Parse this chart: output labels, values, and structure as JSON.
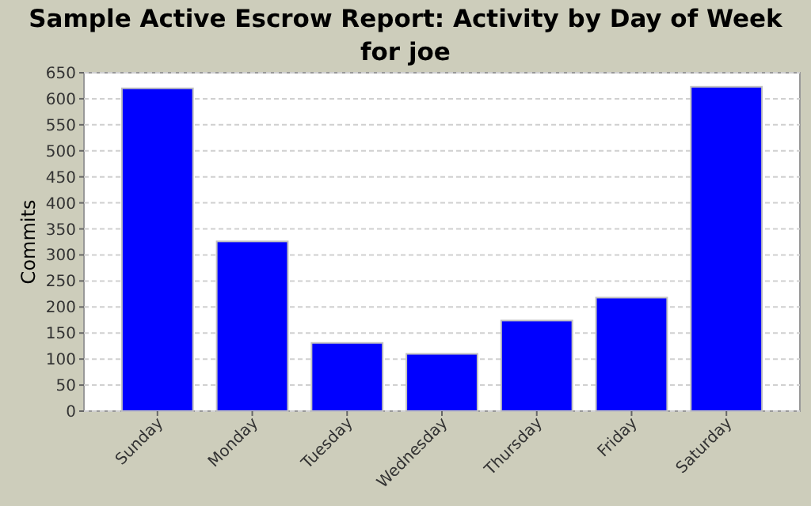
{
  "chart_data": {
    "type": "bar",
    "title": "Sample Active Escrow Report: Activity by Day of Week for joe",
    "ylabel": "Commits",
    "categories": [
      "Sunday",
      "Monday",
      "Tuesday",
      "Wednesday",
      "Thursday",
      "Friday",
      "Saturday"
    ],
    "values": [
      620,
      326,
      131,
      110,
      174,
      218,
      623
    ],
    "color": "#0000ff",
    "ylim": [
      0,
      650
    ],
    "yticks": [
      0,
      50,
      100,
      150,
      200,
      250,
      300,
      350,
      400,
      450,
      500,
      550,
      600,
      650
    ],
    "grid": "y"
  }
}
